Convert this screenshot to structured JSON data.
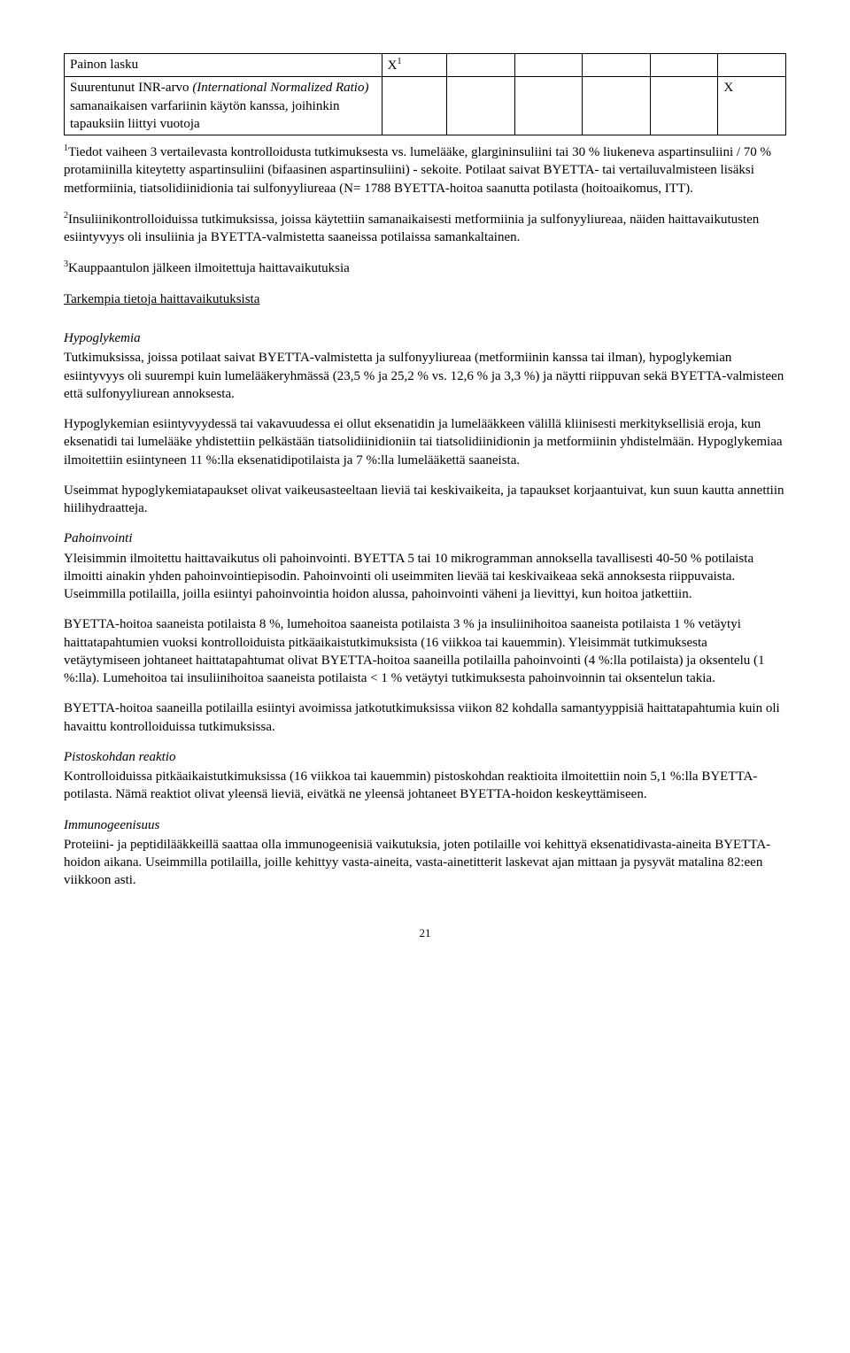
{
  "table": {
    "rows": [
      {
        "label_plain": "Painon lasku",
        "label_italic": "",
        "mark_col": 1,
        "mark_text": "X",
        "mark_sup": "1"
      },
      {
        "label_plain": "Suurentunut INR-arvo ",
        "label_italic": "(International Normalized Ratio)",
        "label_plain_after": " samanaikaisen varfariinin käytön kanssa, joihinkin tapauksiin liittyi vuotoja",
        "mark_col": 6,
        "mark_text": "X",
        "mark_sup": ""
      }
    ]
  },
  "footnote1": {
    "sup": "1",
    "text": "Tiedot vaiheen 3 vertailevasta kontrolloidusta tutkimuksesta vs. lumelääke, glargininsuliini tai 30 % liukeneva aspartinsuliini / 70 % protamiinilla kiteytetty aspartinsuliini (bifaasinen aspartinsuliini) - sekoite. Potilaat saivat BYETTA- tai vertailuvalmisteen lisäksi metformiinia, tiatsolidiinidionia tai sulfonyyliureaa (N= 1788 BYETTA-hoitoa saanutta potilasta (hoitoaikomus, ITT)."
  },
  "footnote2": {
    "sup": "2",
    "text": "Insuliinikontrolloiduissa tutkimuksissa, joissa käytettiin samanaikaisesti metformiinia ja sulfonyyliureaa, näiden haittavaikutusten esiintyvyys oli insuliinia ja BYETTA-valmistetta saaneissa potilaissa samankaltainen."
  },
  "footnote3": {
    "sup": "3",
    "text": "Kauppaantulon jälkeen ilmoitettuja haittavaikutuksia"
  },
  "sec_more_heading": "Tarkempia tietoja haittavaikutuksista",
  "hypo": {
    "heading": "Hypoglykemia",
    "p1": "Tutkimuksissa, joissa potilaat saivat BYETTA-valmistetta ja sulfonyyliureaa (metformiinin kanssa tai ilman), hypoglykemian esiintyvyys oli suurempi kuin lumelääkeryhmässä (23,5 % ja 25,2 % vs. 12,6 % ja 3,3 %) ja näytti riippuvan sekä BYETTA-valmisteen että sulfonyyliurean annoksesta.",
    "p2": "Hypoglykemian esiintyvyydessä tai vakavuudessa ei ollut eksenatidin ja lumelääkkeen välillä kliinisesti merkityksellisiä eroja, kun eksenatidi tai lumelääke yhdistettiin pelkästään tiatsolidiinidioniin tai tiatsolidiinidionin ja metformiinin yhdistelmään. Hypoglykemiaa ilmoitettiin esiintyneen 11 %:lla eksenatidipotilaista ja 7 %:lla lumelääkettä saaneista.",
    "p3": "Useimmat hypoglykemiatapaukset olivat vaikeusasteeltaan lieviä tai keskivaikeita, ja tapaukset korjaantuivat, kun suun kautta annettiin hiilihydraatteja."
  },
  "nausea": {
    "heading": "Pahoinvointi",
    "p1": "Yleisimmin ilmoitettu haittavaikutus oli pahoinvointi. BYETTA 5 tai 10 mikrogramman annoksella tavallisesti 40-50 % potilaista ilmoitti ainakin yhden pahoinvointiepisodin. Pahoinvointi oli useimmiten lievää tai keskivaikeaa sekä annoksesta riippuvaista. Useimmilla potilailla, joilla esiintyi pahoinvointia hoidon alussa, pahoinvointi väheni ja lievittyi, kun hoitoa jatkettiin.",
    "p2": "BYETTA-hoitoa saaneista potilaista 8 %, lumehoitoa saaneista potilaista 3 % ja insuliinihoitoa saaneista potilaista 1 % vetäytyi haittatapahtumien vuoksi kontrolloiduista pitkäaikaistutkimuksista (16 viikkoa tai kauemmin). Yleisimmät tutkimuksesta vetäytymiseen johtaneet haittatapahtumat olivat BYETTA-hoitoa saaneilla potilailla pahoinvointi (4 %:lla potilaista) ja oksentelu (1 %:lla). Lumehoitoa tai insuliinihoitoa saaneista potilaista < 1 % vetäytyi tutkimuksesta pahoinvoinnin tai oksentelun takia.",
    "p3": "BYETTA-hoitoa saaneilla potilailla esiintyi avoimissa jatkotutkimuksissa viikon 82 kohdalla samantyyppisiä haittatapahtumia kuin oli havaittu kontrolloiduissa tutkimuksissa."
  },
  "injection": {
    "heading": "Pistoskohdan reaktio",
    "p1": "Kontrolloiduissa pitkäaikaistutkimuksissa (16 viikkoa tai kauemmin) pistoskohdan reaktioita ilmoitettiin noin 5,1 %:lla BYETTA-potilasta. Nämä reaktiot olivat yleensä lieviä, eivätkä ne yleensä johtaneet BYETTA-hoidon keskeyttämiseen."
  },
  "immuno": {
    "heading": "Immunogeenisuus",
    "p1": "Proteiini- ja peptidilääkkeillä saattaa olla immunogeenisiä vaikutuksia, joten potilaille voi kehittyä eksenatidivasta-aineita BYETTA-hoidon aikana. Useimmilla potilailla, joille kehittyy vasta-aineita, vasta-ainetitterit laskevat ajan mittaan ja pysyvät matalina 82:een viikkoon asti."
  },
  "pagenum": "21"
}
